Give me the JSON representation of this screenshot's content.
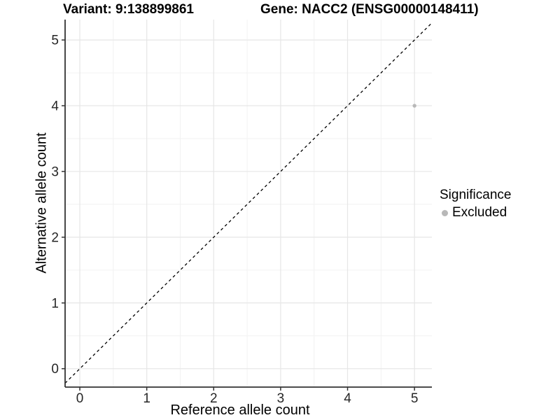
{
  "header": {
    "variant_title": "Variant: 9:138899861",
    "gene_title": "Gene: NACC2 (ENSG00000148411)"
  },
  "axes": {
    "x_label": "Reference allele count",
    "y_label": "Alternative allele count"
  },
  "legend": {
    "title": "Significance",
    "items": [
      {
        "label": "Excluded",
        "color": "#b8b8b8"
      }
    ]
  },
  "colors": {
    "background": "#ffffff",
    "axis_line": "#333333",
    "tick_mark": "#333333",
    "tick_label": "#262626",
    "major_grid": "#e6e6e6",
    "minor_grid": "#f2f2f2",
    "point": "#b8b8b8",
    "reference_line": "#000000"
  },
  "chart_data": {
    "type": "scatter",
    "title": "Variant: 9:138899861   Gene: NACC2 (ENSG00000148411)",
    "xlabel": "Reference allele count",
    "ylabel": "Alternative allele count",
    "xlim": [
      -0.22,
      5.26
    ],
    "ylim": [
      -0.28,
      5.31
    ],
    "x_ticks": [
      0,
      1,
      2,
      3,
      4,
      5
    ],
    "y_ticks": [
      0,
      1,
      2,
      3,
      4,
      5
    ],
    "minor_grid_step": 0.5,
    "grid": true,
    "legend_position": "right",
    "series": [
      {
        "name": "Excluded",
        "color": "#b8b8b8",
        "points": [
          {
            "x": 5,
            "y": 4
          }
        ]
      }
    ],
    "reference_line": {
      "type": "identity",
      "slope": 1,
      "intercept": 0,
      "style": "dashed",
      "color": "#000000"
    }
  }
}
